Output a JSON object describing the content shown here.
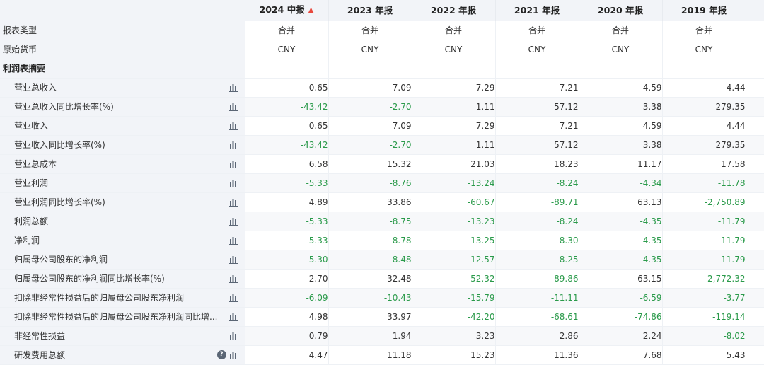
{
  "header": {
    "periods": [
      "2024 中报",
      "2023 年报",
      "2022 年报",
      "2021 年报",
      "2020 年报",
      "2019 年报"
    ]
  },
  "rows_meta": [
    {
      "label": "报表类型",
      "values": [
        "合并",
        "合并",
        "合并",
        "合并",
        "合并",
        "合并"
      ]
    },
    {
      "label": "原始货币",
      "values": [
        "CNY",
        "CNY",
        "CNY",
        "CNY",
        "CNY",
        "CNY"
      ]
    }
  ],
  "section": {
    "label": "利润表摘要"
  },
  "rows": [
    {
      "label": "营业总收入",
      "values": [
        "0.65",
        "7.09",
        "7.29",
        "7.21",
        "4.59",
        "4.44"
      ]
    },
    {
      "label": "营业总收入同比增长率(%)",
      "values": [
        "-43.42",
        "-2.70",
        "1.11",
        "57.12",
        "3.38",
        "279.35"
      ]
    },
    {
      "label": "营业收入",
      "values": [
        "0.65",
        "7.09",
        "7.29",
        "7.21",
        "4.59",
        "4.44"
      ]
    },
    {
      "label": "营业收入同比增长率(%)",
      "values": [
        "-43.42",
        "-2.70",
        "1.11",
        "57.12",
        "3.38",
        "279.35"
      ]
    },
    {
      "label": "营业总成本",
      "values": [
        "6.58",
        "15.32",
        "21.03",
        "18.23",
        "11.17",
        "17.58"
      ]
    },
    {
      "label": "营业利润",
      "values": [
        "-5.33",
        "-8.76",
        "-13.24",
        "-8.24",
        "-4.34",
        "-11.78"
      ]
    },
    {
      "label": "营业利润同比增长率(%)",
      "values": [
        "4.89",
        "33.86",
        "-60.67",
        "-89.71",
        "63.13",
        "-2,750.89"
      ]
    },
    {
      "label": "利润总额",
      "values": [
        "-5.33",
        "-8.75",
        "-13.23",
        "-8.24",
        "-4.35",
        "-11.79"
      ]
    },
    {
      "label": "净利润",
      "values": [
        "-5.33",
        "-8.78",
        "-13.25",
        "-8.30",
        "-4.35",
        "-11.79"
      ]
    },
    {
      "label": "归属母公司股东的净利润",
      "values": [
        "-5.30",
        "-8.48",
        "-12.57",
        "-8.25",
        "-4.35",
        "-11.79"
      ]
    },
    {
      "label": "归属母公司股东的净利润同比增长率(%)",
      "values": [
        "2.70",
        "32.48",
        "-52.32",
        "-89.86",
        "63.15",
        "-2,772.32"
      ]
    },
    {
      "label": "扣除非经常性损益后的归属母公司股东净利润",
      "values": [
        "-6.09",
        "-10.43",
        "-15.79",
        "-11.11",
        "-6.59",
        "-3.77"
      ]
    },
    {
      "label": "扣除非经常性损益后的归属母公司股东净利润同比增...",
      "values": [
        "4.98",
        "33.97",
        "-42.20",
        "-68.61",
        "-74.86",
        "-119.14"
      ]
    },
    {
      "label": "非经常性损益",
      "values": [
        "0.79",
        "1.94",
        "3.23",
        "2.86",
        "2.24",
        "-8.02"
      ]
    },
    {
      "label": "研发费用总额",
      "values": [
        "4.47",
        "11.18",
        "15.23",
        "11.36",
        "7.68",
        "5.43"
      ],
      "help": "?"
    }
  ],
  "colors": {
    "negative": "#2a9a4a",
    "alert": "#e8483d"
  },
  "icons": {
    "row_chart": "bar-chart-icon",
    "alert": "bell-icon",
    "help": "question-icon"
  }
}
